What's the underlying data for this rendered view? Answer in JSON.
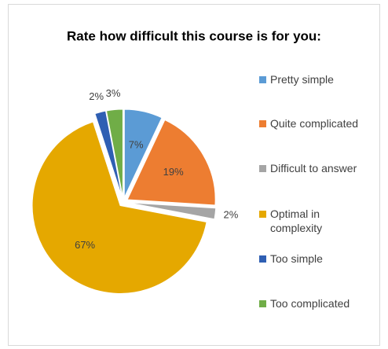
{
  "chart_data": {
    "type": "pie",
    "title": "Rate how difficult this course is for you:",
    "categories": [
      "Pretty simple",
      "Quite complicated",
      "Difficult to answer",
      "Optimal in complexity",
      "Too simple",
      "Too complicated"
    ],
    "values": [
      7,
      19,
      2,
      67,
      2,
      3
    ],
    "value_labels": [
      "7%",
      "19%",
      "2%",
      "67%",
      "2%",
      "3%"
    ],
    "colors": [
      "#5b9bd5",
      "#ed7d31",
      "#a5a5a5",
      "#e5a800",
      "#2f5fb3",
      "#70ad47"
    ],
    "legend": "right"
  }
}
